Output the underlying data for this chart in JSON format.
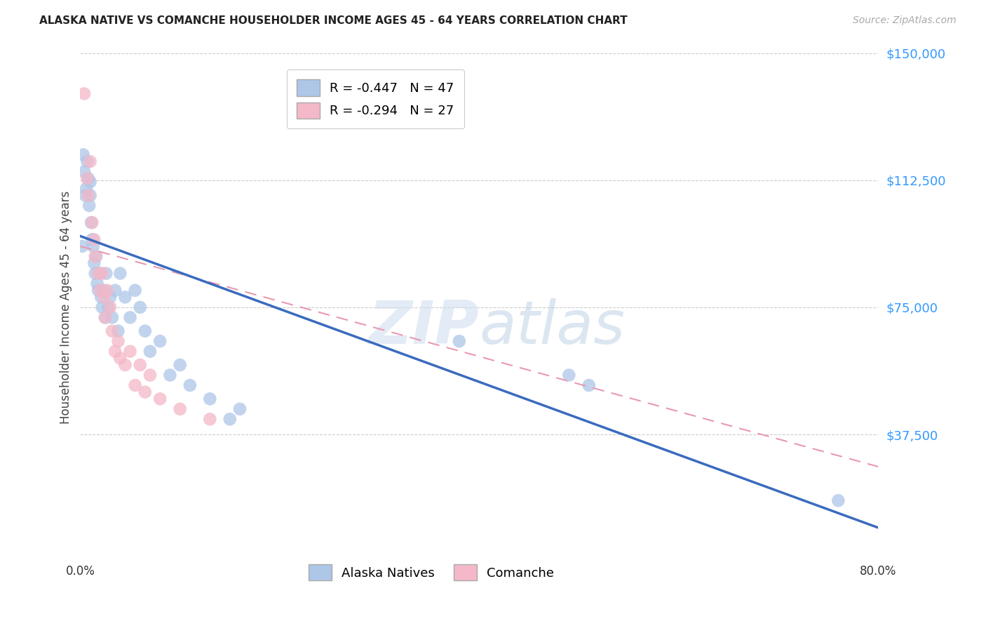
{
  "title": "ALASKA NATIVE VS COMANCHE HOUSEHOLDER INCOME AGES 45 - 64 YEARS CORRELATION CHART",
  "source": "Source: ZipAtlas.com",
  "ylabel": "Householder Income Ages 45 - 64 years",
  "alaska_color": "#aec6e8",
  "comanche_color": "#f4b8c8",
  "alaska_R": -0.447,
  "alaska_N": 47,
  "comanche_R": -0.294,
  "comanche_N": 27,
  "xlim": [
    0.0,
    0.8
  ],
  "ylim": [
    0,
    150000
  ],
  "yticks": [
    0,
    37500,
    75000,
    112500,
    150000
  ],
  "ytick_labels": [
    "",
    "$37,500",
    "$75,000",
    "$112,500",
    "$150,000"
  ],
  "xtick_positions": [
    0.0,
    0.1,
    0.2,
    0.3,
    0.4,
    0.5,
    0.6,
    0.7,
    0.8
  ],
  "xtick_labels": [
    "0.0%",
    "",
    "",
    "",
    "",
    "",
    "",
    "",
    "80.0%"
  ],
  "alaska_x": [
    0.002,
    0.003,
    0.004,
    0.005,
    0.006,
    0.007,
    0.008,
    0.009,
    0.01,
    0.01,
    0.011,
    0.012,
    0.013,
    0.014,
    0.015,
    0.016,
    0.017,
    0.018,
    0.02,
    0.021,
    0.022,
    0.024,
    0.025,
    0.026,
    0.028,
    0.03,
    0.032,
    0.035,
    0.038,
    0.04,
    0.045,
    0.05,
    0.055,
    0.06,
    0.065,
    0.07,
    0.08,
    0.09,
    0.1,
    0.11,
    0.13,
    0.15,
    0.16,
    0.38,
    0.49,
    0.51,
    0.76
  ],
  "alaska_y": [
    93000,
    120000,
    115000,
    108000,
    110000,
    118000,
    113000,
    105000,
    112000,
    108000,
    100000,
    95000,
    93000,
    88000,
    85000,
    90000,
    82000,
    80000,
    85000,
    78000,
    75000,
    80000,
    72000,
    85000,
    75000,
    78000,
    72000,
    80000,
    68000,
    85000,
    78000,
    72000,
    80000,
    75000,
    68000,
    62000,
    65000,
    55000,
    58000,
    52000,
    48000,
    42000,
    45000,
    65000,
    55000,
    52000,
    18000
  ],
  "comanche_x": [
    0.004,
    0.007,
    0.008,
    0.01,
    0.012,
    0.014,
    0.015,
    0.018,
    0.02,
    0.022,
    0.024,
    0.025,
    0.027,
    0.03,
    0.032,
    0.035,
    0.038,
    0.04,
    0.045,
    0.05,
    0.055,
    0.06,
    0.065,
    0.07,
    0.08,
    0.1,
    0.13
  ],
  "comanche_y": [
    138000,
    113000,
    108000,
    118000,
    100000,
    95000,
    90000,
    85000,
    80000,
    85000,
    78000,
    72000,
    80000,
    75000,
    68000,
    62000,
    65000,
    60000,
    58000,
    62000,
    52000,
    58000,
    50000,
    55000,
    48000,
    45000,
    42000
  ],
  "alaska_line_x": [
    0.0,
    0.8
  ],
  "alaska_line_y": [
    96000,
    10000
  ],
  "comanche_line_x": [
    0.0,
    0.8
  ],
  "comanche_line_y": [
    93000,
    28000
  ]
}
